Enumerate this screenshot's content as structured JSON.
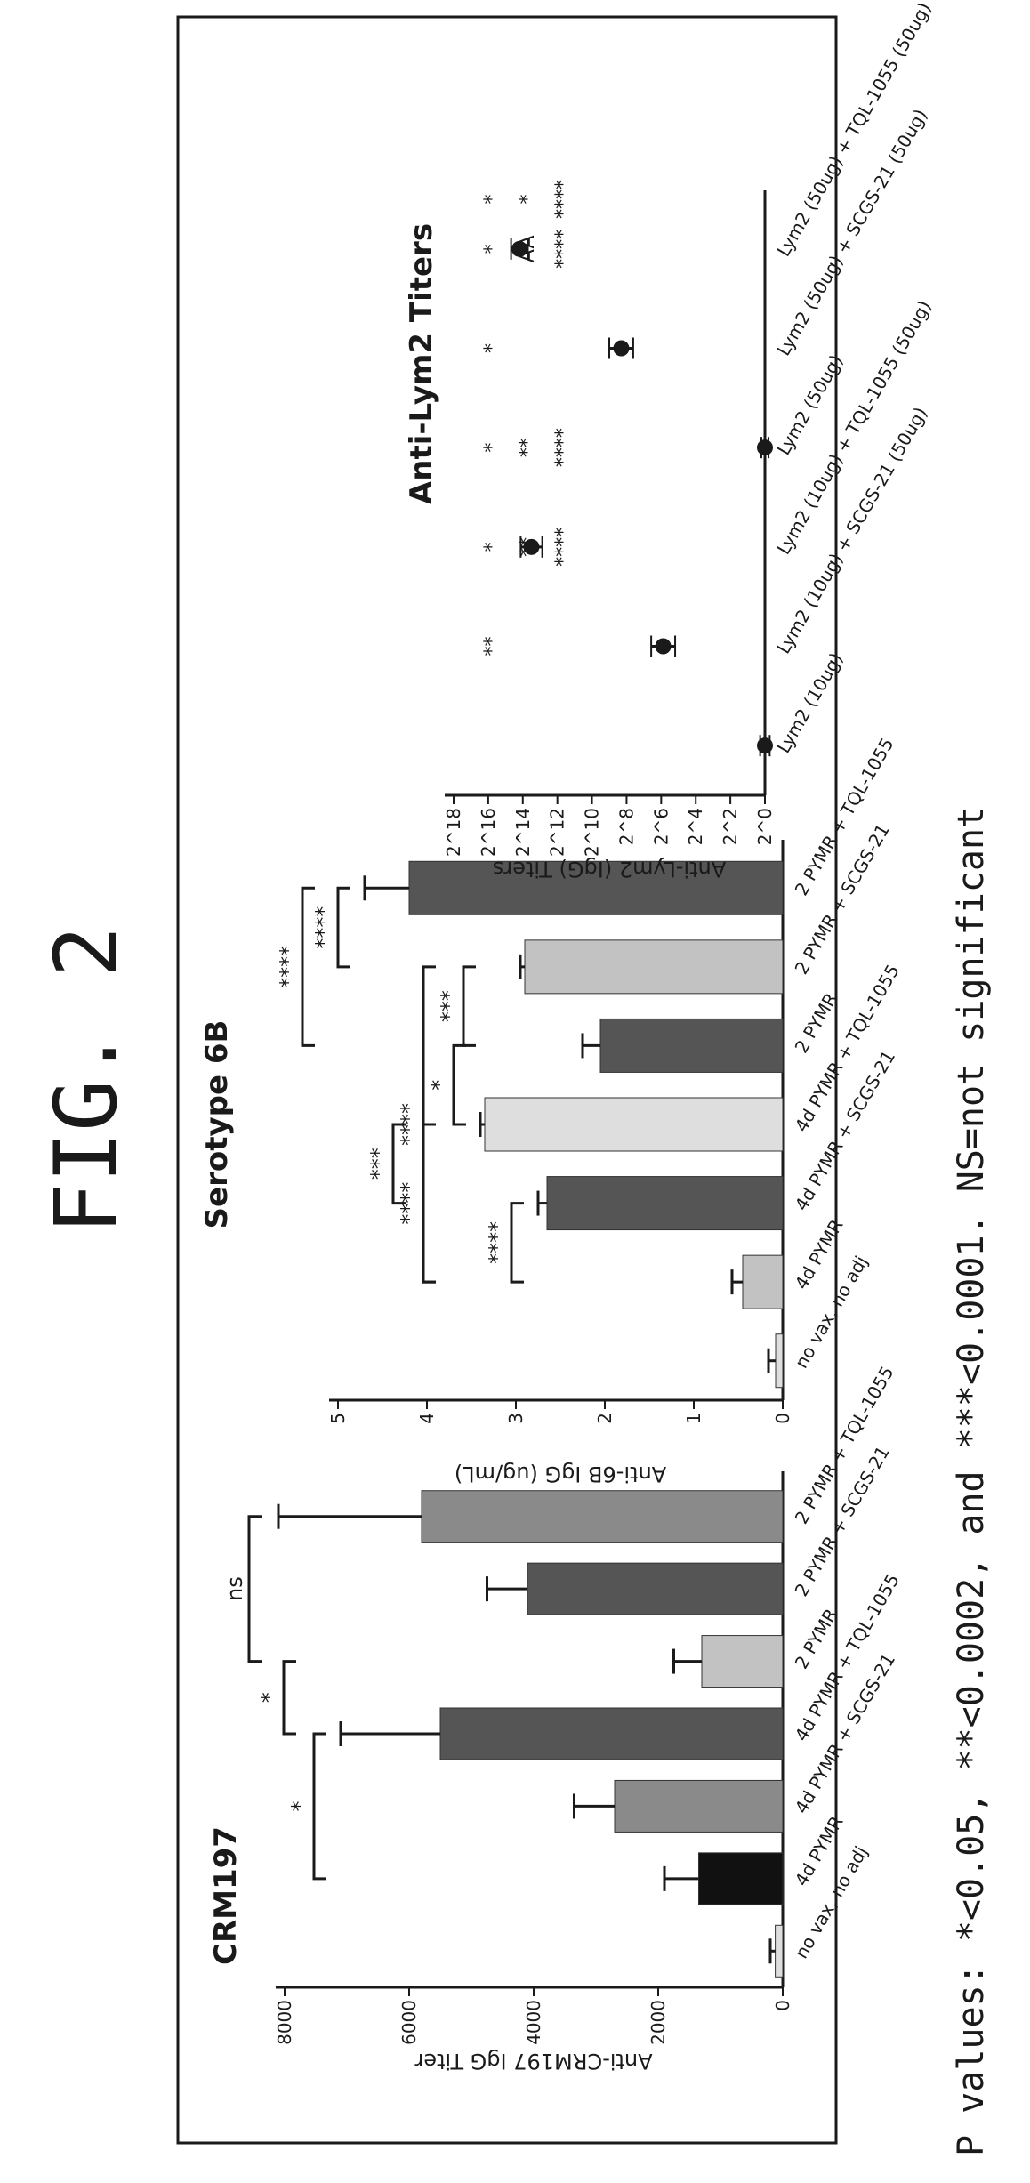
{
  "figure_title": "FIG. 2",
  "footer_text": "P values: *<0.05, **<0.0002, and ***<0.0001. NS=not significant",
  "colors": {
    "ink": "#1a1a1a",
    "bar_black": "#111111",
    "bar_dark": "#555555",
    "bar_mid": "#8a8a8a",
    "bar_light": "#c2c2c2",
    "bar_faint": "#dedede"
  },
  "chart_data": [
    {
      "type": "bar",
      "title": "CRM197",
      "ylabel": "Anti-CRM197 IgG Titer",
      "ylim": [
        0,
        8000
      ],
      "yticks": [
        "0",
        "2000",
        "4000",
        "6000",
        "8000"
      ],
      "categories": [
        "no vax, no adj",
        "4d PYMR",
        "4d PYMR + SCGS-21",
        "4d PYMR + TQL-1055",
        "2 PYMR",
        "2 PYMR + SCGS-21",
        "2 PYMR + TQL-1055"
      ],
      "values": [
        120,
        1350,
        2700,
        5500,
        1300,
        4100,
        5800
      ],
      "errors": [
        80,
        550,
        650,
        1600,
        450,
        650,
        2300
      ],
      "shades": [
        "bar_faint",
        "bar_black",
        "bar_mid",
        "bar_dark",
        "bar_light",
        "bar_dark",
        "bar_mid"
      ],
      "significance": [
        {
          "from": 1,
          "to": 3,
          "label": "*"
        },
        {
          "from": 3,
          "to": 4,
          "label": "*"
        },
        {
          "from": 4,
          "to": 6,
          "label": "ns"
        }
      ]
    },
    {
      "type": "bar",
      "title": "Serotype 6B",
      "ylabel": "Anti-6B IgG (ug/mL)",
      "ylim": [
        0,
        5
      ],
      "yticks": [
        "0",
        "1",
        "2",
        "3",
        "4",
        "5"
      ],
      "categories": [
        "no vax, no adj",
        "4d PYMR",
        "4d PYMR + SCGS-21",
        "4d PYMR + TQL-1055",
        "2 PYMR",
        "2 PYMR + SCGS-21",
        "2 PYMR + TQL-1055"
      ],
      "values": [
        0.08,
        0.45,
        2.65,
        3.35,
        2.05,
        2.9,
        4.2
      ],
      "errors": [
        0.08,
        0.12,
        0.1,
        0.05,
        0.2,
        0.05,
        0.5
      ],
      "shades": [
        "bar_faint",
        "bar_light",
        "bar_dark",
        "bar_faint",
        "bar_dark",
        "bar_light",
        "bar_dark"
      ],
      "significance": [
        {
          "from": 1,
          "to": 2,
          "label": "****"
        },
        {
          "from": 1,
          "to": 3,
          "label": "****"
        },
        {
          "from": 2,
          "to": 3,
          "label": "***"
        },
        {
          "from": 3,
          "to": 4,
          "label": "*"
        },
        {
          "from": 4,
          "to": 5,
          "label": "***"
        },
        {
          "from": 4,
          "to": 6,
          "label": "****"
        },
        {
          "from": 5,
          "to": 6,
          "label": "****"
        },
        {
          "from": 1,
          "to": 5,
          "label": "****"
        }
      ]
    },
    {
      "type": "scatter",
      "title": "Anti-Lym2 Titers",
      "ylabel": "Anti-Lym2 (IgG) Titers",
      "ylim": [
        2,
        28
      ],
      "yticks": [
        "2^0",
        "2^2",
        "2^4",
        "2^6",
        "2^8",
        "2^10",
        "2^12",
        "2^14",
        "2^16",
        "2^18"
      ],
      "categories": [
        "Lym2 (10ug)",
        "Lym2 (10ug) + SCGS-21 (50ug)",
        "Lym2 (10ug) + TQL-1055 (50ug)",
        "Lym2 (50ug)",
        "Lym2 (50ug) + SCGS-21 (50ug)",
        "Lym2 (50ug) + TQL-1055 (50ug)"
      ],
      "points": [
        {
          "category": 0,
          "mean": 2.0,
          "error": 0.4
        },
        {
          "category": 1,
          "mean": 10.5,
          "error": 1.0
        },
        {
          "category": 2,
          "mean": 21.5,
          "error": 0.9
        },
        {
          "category": 3,
          "mean": 2.0,
          "error": 0.3
        },
        {
          "category": 4,
          "mean": 14.0,
          "error": 1.0
        },
        {
          "category": 5,
          "mean": 22.5,
          "error": 0.7
        }
      ],
      "annotations": [
        {
          "category": 1,
          "rows": [
            "**",
            ""
          ]
        },
        {
          "category": 2,
          "rows": [
            "*",
            "**",
            "****"
          ]
        },
        {
          "category": 3,
          "rows": [
            "*",
            "**",
            "****"
          ]
        },
        {
          "category": 4,
          "rows": [
            "*",
            "",
            ""
          ]
        },
        {
          "category": 5,
          "rows": [
            "*",
            "AA",
            "****"
          ]
        },
        {
          "category": 6,
          "rows": [
            "*",
            "*",
            "****"
          ]
        }
      ]
    }
  ]
}
